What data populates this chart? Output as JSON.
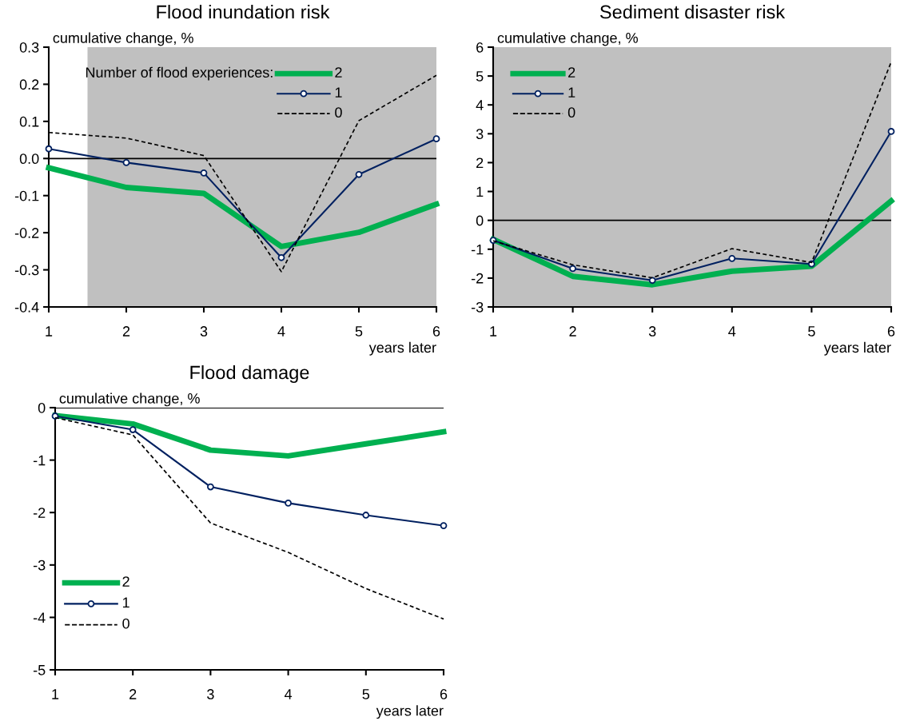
{
  "chart_data": [
    {
      "type": "line",
      "title": "Flood inundation risk",
      "ylabel": "cumulative change, %",
      "xlabel": "years later",
      "legend_title": "Number of flood experiences:",
      "legend": "top right",
      "x": [
        1,
        2,
        3,
        4,
        5,
        6
      ],
      "xlim": [
        1,
        6
      ],
      "xticks": [
        1,
        2,
        3,
        4,
        5,
        6
      ],
      "ylim": [
        -0.4,
        0.3
      ],
      "yticks": [
        {
          "value": -0.4,
          "label": "-0.4"
        },
        {
          "value": -0.3,
          "label": "-0.3"
        },
        {
          "value": -0.2,
          "label": "-0.2"
        },
        {
          "value": -0.1,
          "label": "-0.1"
        },
        {
          "value": 0,
          "label": "0.0"
        },
        {
          "value": 0.1,
          "label": "0.1"
        },
        {
          "value": 0.2,
          "label": "0.2"
        },
        {
          "value": 0.3,
          "label": "0.3"
        }
      ],
      "bands": [
        {
          "axis": "x",
          "from": 1.5,
          "to": 6,
          "color": "#c0c0c0"
        }
      ],
      "ref_lines": [
        {
          "axis": "y",
          "value": 0,
          "color": "#000000"
        }
      ],
      "series": [
        {
          "name": "2",
          "color": "#00b050",
          "marker": "none",
          "line_style": "solid",
          "values": [
            -0.025,
            -0.078,
            -0.094,
            -0.237,
            -0.199,
            -0.123
          ]
        },
        {
          "name": "1",
          "color": "#002060",
          "marker": "circle",
          "line_style": "solid",
          "values": [
            0.026,
            -0.011,
            -0.039,
            -0.267,
            -0.043,
            0.053
          ]
        },
        {
          "name": "0",
          "color": "#000000",
          "marker": "none",
          "line_style": "dashed",
          "values": [
            0.07,
            0.055,
            0.008,
            -0.305,
            0.102,
            0.224
          ]
        }
      ]
    },
    {
      "type": "line",
      "title": "Sediment disaster risk",
      "ylabel": "cumulative change, %",
      "xlabel": "years later",
      "legend": "top left",
      "x": [
        1,
        2,
        3,
        4,
        5,
        6
      ],
      "xlim": [
        1,
        6
      ],
      "xticks": [
        1,
        2,
        3,
        4,
        5,
        6
      ],
      "ylim": [
        -3,
        6
      ],
      "yticks": [
        -3,
        -2,
        -1,
        0,
        1,
        2,
        3,
        4,
        5,
        6
      ],
      "bands": [
        {
          "axis": "x",
          "from": 1,
          "to": 6,
          "color": "#c0c0c0"
        }
      ],
      "ref_lines": [
        {
          "axis": "y",
          "value": 0,
          "color": "#000000"
        }
      ],
      "series": [
        {
          "name": "2",
          "color": "#00b050",
          "marker": "none",
          "line_style": "solid",
          "values": [
            -0.66,
            -1.94,
            -2.23,
            -1.76,
            -1.59,
            0.67
          ]
        },
        {
          "name": "1",
          "color": "#002060",
          "marker": "circle",
          "line_style": "solid",
          "values": [
            -0.69,
            -1.67,
            -2.08,
            -1.32,
            -1.51,
            3.08
          ]
        },
        {
          "name": "0",
          "color": "#000000",
          "marker": "none",
          "line_style": "dashed",
          "values": [
            -0.71,
            -1.54,
            -1.99,
            -0.98,
            -1.46,
            5.49
          ]
        }
      ]
    },
    {
      "type": "line",
      "title": "Flood damage",
      "ylabel": "cumulative change, %",
      "xlabel": "years later",
      "legend": "bottom left",
      "x": [
        1,
        2,
        3,
        4,
        5,
        6
      ],
      "xlim": [
        1,
        6
      ],
      "xticks": [
        1,
        2,
        3,
        4,
        5,
        6
      ],
      "ylim": [
        -5,
        0
      ],
      "yticks": [
        -5,
        -4,
        -3,
        -2,
        -1,
        0
      ],
      "ref_lines": [
        {
          "axis": "y",
          "value": 0,
          "color": "#000000"
        }
      ],
      "series": [
        {
          "name": "2",
          "color": "#00b050",
          "marker": "none",
          "line_style": "solid",
          "values": [
            -0.15,
            -0.31,
            -0.81,
            -0.92,
            -0.69,
            -0.46
          ]
        },
        {
          "name": "1",
          "color": "#002060",
          "marker": "circle",
          "line_style": "solid",
          "values": [
            -0.16,
            -0.42,
            -1.51,
            -1.82,
            -2.05,
            -2.25
          ]
        },
        {
          "name": "0",
          "color": "#000000",
          "marker": "none",
          "line_style": "dashed",
          "values": [
            -0.19,
            -0.52,
            -2.2,
            -2.76,
            -3.45,
            -4.03
          ]
        }
      ]
    }
  ]
}
